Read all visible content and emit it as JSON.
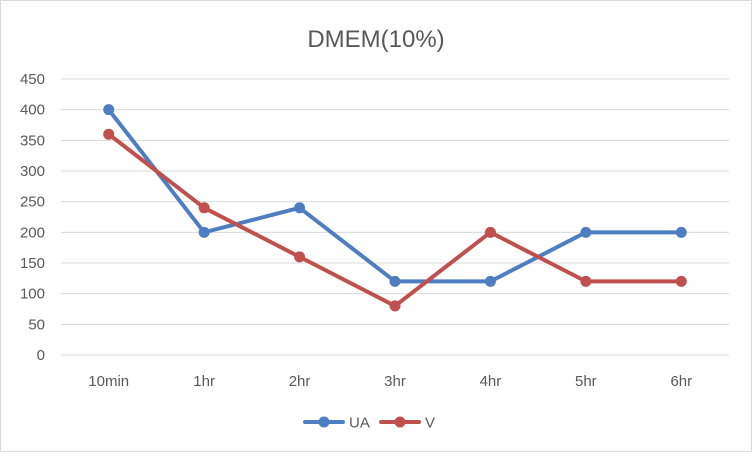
{
  "chart_data": {
    "type": "line",
    "title": "DMEM(10%)",
    "xlabel": "",
    "ylabel": "",
    "categories": [
      "10min",
      "1hr",
      "2hr",
      "3hr",
      "4hr",
      "5hr",
      "6hr"
    ],
    "ylim": [
      0,
      450
    ],
    "yticks": [
      0,
      50,
      100,
      150,
      200,
      250,
      300,
      350,
      400,
      450
    ],
    "grid": true,
    "legend_position": "bottom",
    "series": [
      {
        "name": "UA",
        "color": "#4e7ec2",
        "values": [
          400,
          200,
          240,
          120,
          120,
          200,
          200
        ]
      },
      {
        "name": "V",
        "color": "#c0504d",
        "values": [
          360,
          240,
          160,
          80,
          200,
          120,
          120
        ]
      }
    ]
  }
}
